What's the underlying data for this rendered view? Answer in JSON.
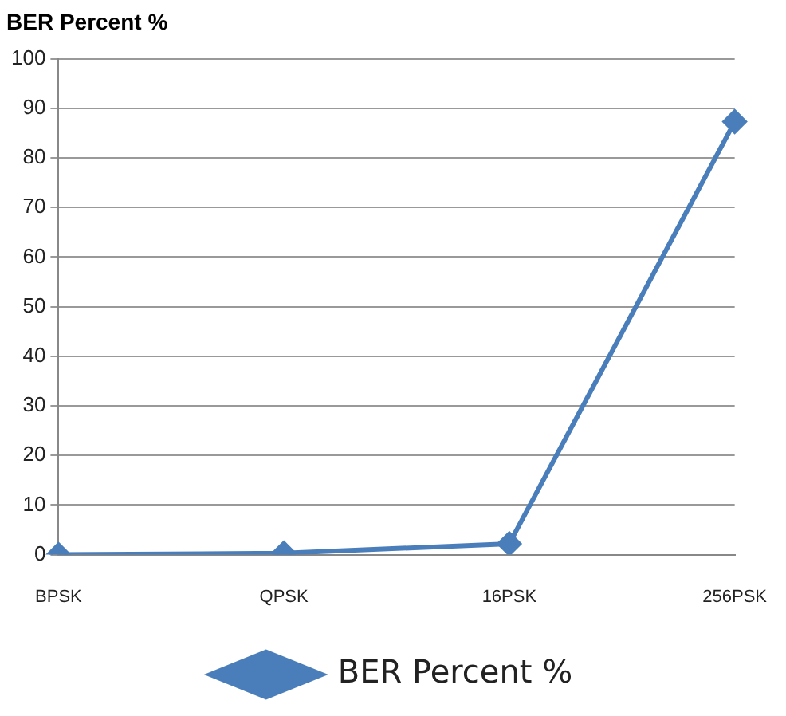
{
  "chart_data": {
    "type": "line",
    "title": "BER Percent %",
    "categories": [
      "BPSK",
      "QPSK",
      "16PSK",
      "256PSK"
    ],
    "series": [
      {
        "name": "BER Percent %",
        "color": "#4a7ebb",
        "values": [
          0,
          0.3,
          2.2,
          87.3
        ]
      }
    ],
    "ylim": [
      0,
      100
    ],
    "yticks": [
      0,
      10,
      20,
      30,
      40,
      50,
      60,
      70,
      80,
      90,
      100
    ],
    "grid": "y",
    "legend": "bottom",
    "marker": "diamond",
    "line_style": "solid"
  }
}
